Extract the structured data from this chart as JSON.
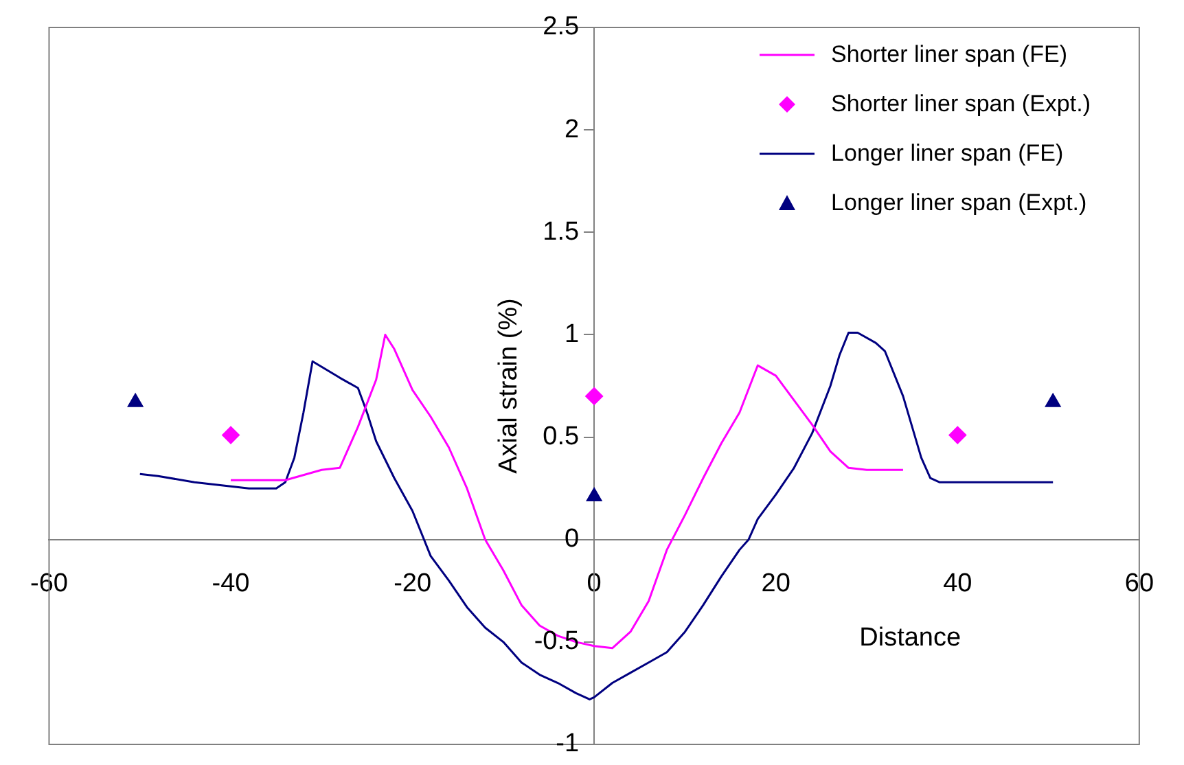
{
  "chart_data": {
    "type": "line",
    "xlabel": "Distance",
    "ylabel": "Axial strain (%)",
    "xlim": [
      -60,
      60
    ],
    "xticks": [
      -60,
      -40,
      -20,
      0,
      20,
      40,
      60
    ],
    "ylim": [
      -1,
      2.5
    ],
    "yticks": [
      -1,
      -0.5,
      0,
      0.5,
      1,
      1.5,
      2,
      2.5
    ],
    "grid": false,
    "legend": "top right",
    "series": [
      {
        "name": "Shorter liner span (FE)",
        "type": "line",
        "marker": "none",
        "color": "#ff00ff",
        "x": [
          -40,
          -34,
          -30,
          -28,
          -26,
          -24,
          -23,
          -22,
          -20,
          -18,
          -16,
          -14,
          -12,
          -10,
          -8,
          -6,
          -4,
          -2,
          0,
          2,
          4,
          6,
          8,
          10,
          12,
          14,
          16,
          18,
          20,
          22,
          24,
          26,
          28,
          30,
          34
        ],
        "values": [
          0.29,
          0.29,
          0.34,
          0.35,
          0.55,
          0.78,
          1.0,
          0.93,
          0.73,
          0.6,
          0.45,
          0.25,
          0.0,
          -0.15,
          -0.32,
          -0.42,
          -0.47,
          -0.5,
          -0.52,
          -0.53,
          -0.45,
          -0.3,
          -0.05,
          0.12,
          0.3,
          0.47,
          0.62,
          0.85,
          0.8,
          0.68,
          0.56,
          0.43,
          0.35,
          0.34,
          0.34
        ]
      },
      {
        "name": "Shorter liner span (Expt.)",
        "type": "scatter",
        "marker": "diamond",
        "color": "#ff00ff",
        "x": [
          -40,
          0,
          40
        ],
        "values": [
          0.51,
          0.7,
          0.51
        ]
      },
      {
        "name": "Longer liner span (FE)",
        "type": "line",
        "marker": "none",
        "color": "#000080",
        "x": [
          -50,
          -48,
          -44,
          -40,
          -38,
          -35,
          -34,
          -33,
          -32,
          -31,
          -28,
          -26,
          -25,
          -24,
          -22,
          -20,
          -18,
          -16,
          -14,
          -12,
          -10,
          -8,
          -6,
          -4,
          -2,
          -0.5,
          0,
          2,
          4,
          6,
          8,
          10,
          12,
          14,
          16,
          17,
          18,
          20,
          22,
          24,
          26,
          27,
          28,
          29,
          31,
          32,
          34,
          36,
          37,
          38,
          50.5
        ],
        "values": [
          0.32,
          0.31,
          0.28,
          0.26,
          0.25,
          0.25,
          0.28,
          0.4,
          0.62,
          0.87,
          0.79,
          0.74,
          0.62,
          0.48,
          0.3,
          0.14,
          -0.08,
          -0.2,
          -0.33,
          -0.43,
          -0.5,
          -0.6,
          -0.66,
          -0.7,
          -0.75,
          -0.78,
          -0.77,
          -0.7,
          -0.65,
          -0.6,
          -0.55,
          -0.45,
          -0.32,
          -0.18,
          -0.05,
          0.0,
          0.1,
          0.22,
          0.35,
          0.52,
          0.75,
          0.9,
          1.01,
          1.01,
          0.96,
          0.92,
          0.7,
          0.4,
          0.3,
          0.28,
          0.28
        ]
      },
      {
        "name": "Longer liner span (Expt.)",
        "type": "scatter",
        "marker": "triangle",
        "color": "#000080",
        "x": [
          -50.5,
          0,
          50.5
        ],
        "values": [
          0.67,
          0.21,
          0.67
        ]
      }
    ]
  }
}
